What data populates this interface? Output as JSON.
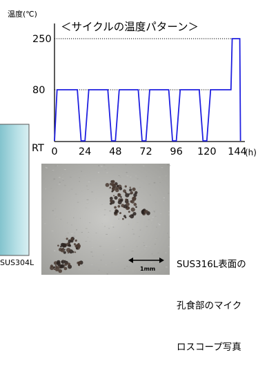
{
  "chart_data": {
    "type": "line",
    "title": "＜サイクルの温度パターン＞",
    "ylabel": "温度(℃)",
    "xlabel": "(h)",
    "x_ticks": [
      "0",
      "24",
      "48",
      "72",
      "96",
      "120",
      "144"
    ],
    "y_ticks": [
      "RT",
      "80",
      "250"
    ],
    "x_range": [
      0,
      150
    ],
    "series": [
      {
        "values": "temperature",
        "x": [
          0,
          2,
          18,
          21,
          24,
          27,
          42,
          45,
          48,
          51,
          66,
          69,
          72,
          75,
          90,
          93,
          96,
          99,
          114,
          117,
          120,
          123,
          138,
          139,
          140,
          145,
          146,
          146.5
        ],
        "y": [
          "RT",
          80,
          80,
          "RT",
          "RT",
          80,
          80,
          "RT",
          "RT",
          80,
          80,
          "RT",
          "RT",
          80,
          80,
          "RT",
          "RT",
          80,
          80,
          "RT",
          "RT",
          80,
          80,
          80,
          250,
          250,
          250,
          "RT"
        ]
      }
    ],
    "reference_lines": [
      {
        "y": 250,
        "style": "dotted"
      },
      {
        "y": 80,
        "style": "dotted"
      }
    ]
  },
  "photo": {
    "scale_label": "1mm",
    "caption_lines": [
      "SUS316L表面の",
      "孔食部のマイク",
      "ロスコープ写真"
    ]
  },
  "left_panel": {
    "label": "SUS304L"
  },
  "colors": {
    "line": "#1f1fe0",
    "ref": "#000000",
    "panel": "#a9d8df"
  }
}
